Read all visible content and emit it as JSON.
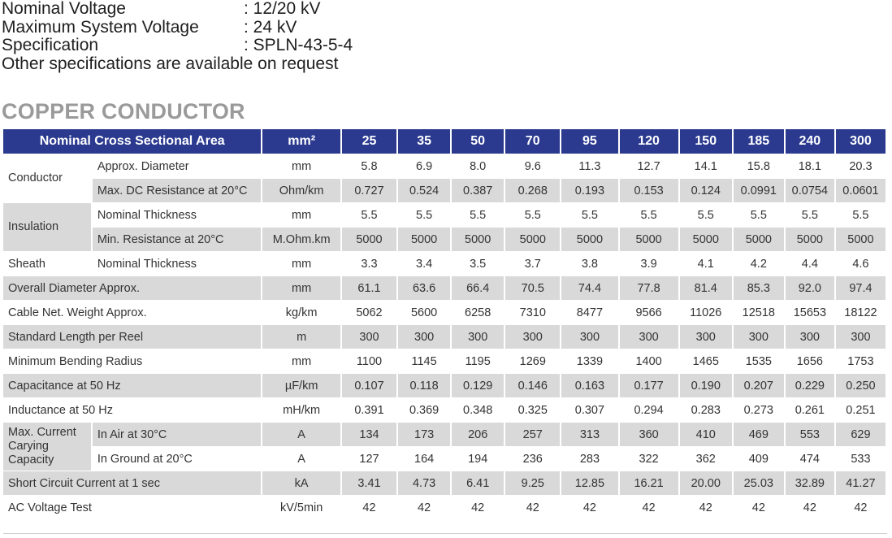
{
  "specs": [
    {
      "key": "Nominal Voltage",
      "value": ": 12/20 kV"
    },
    {
      "key": "Maximum System Voltage",
      "value": ": 24 kV"
    },
    {
      "key": "Specification",
      "value": ": SPLN-43-5-4"
    }
  ],
  "note": "Other specifications are available on request",
  "section_title": "COPPER CONDUCTOR",
  "table": {
    "header": {
      "label": "Nominal Cross Sectional Area",
      "unit": "mm²",
      "sizes": [
        "25",
        "35",
        "50",
        "70",
        "95",
        "120",
        "150",
        "185",
        "240",
        "300"
      ]
    },
    "groups": {
      "conductor": "Conductor",
      "insulation": "Insulation",
      "sheath": "Sheath",
      "max_current": "Max. Current Carying Capacity"
    },
    "rows": [
      {
        "label": "Approx. Diameter",
        "unit": "mm",
        "values": [
          "5.8",
          "6.9",
          "8.0",
          "9.6",
          "11.3",
          "12.7",
          "14.1",
          "15.8",
          "18.1",
          "20.3"
        ]
      },
      {
        "label": "Max. DC Resistance at 20°C",
        "unit": "Ohm/km",
        "values": [
          "0.727",
          "0.524",
          "0.387",
          "0.268",
          "0.193",
          "0.153",
          "0.124",
          "0.0991",
          "0.0754",
          "0.0601"
        ]
      },
      {
        "label": "Nominal Thickness",
        "unit": "mm",
        "values": [
          "5.5",
          "5.5",
          "5.5",
          "5.5",
          "5.5",
          "5.5",
          "5.5",
          "5.5",
          "5.5",
          "5.5"
        ]
      },
      {
        "label": "Min. Resistance at 20°C",
        "unit": "M.Ohm.km",
        "values": [
          "5000",
          "5000",
          "5000",
          "5000",
          "5000",
          "5000",
          "5000",
          "5000",
          "5000",
          "5000"
        ]
      },
      {
        "label": "Nominal Thickness",
        "unit": "mm",
        "values": [
          "3.3",
          "3.4",
          "3.5",
          "3.7",
          "3.8",
          "3.9",
          "4.1",
          "4.2",
          "4.4",
          "4.6"
        ]
      },
      {
        "label": "Overall Diameter Approx.",
        "unit": "mm",
        "values": [
          "61.1",
          "63.6",
          "66.4",
          "70.5",
          "74.4",
          "77.8",
          "81.4",
          "85.3",
          "92.0",
          "97.4"
        ]
      },
      {
        "label": "Cable Net. Weight Approx.",
        "unit": "kg/km",
        "values": [
          "5062",
          "5600",
          "6258",
          "7310",
          "8477",
          "9566",
          "11026",
          "12518",
          "15653",
          "18122"
        ]
      },
      {
        "label": "Standard Length per Reel",
        "unit": "m",
        "values": [
          "300",
          "300",
          "300",
          "300",
          "300",
          "300",
          "300",
          "300",
          "300",
          "300"
        ]
      },
      {
        "label": "Minimum Bending Radius",
        "unit": "mm",
        "values": [
          "1100",
          "1145",
          "1195",
          "1269",
          "1339",
          "1400",
          "1465",
          "1535",
          "1656",
          "1753"
        ]
      },
      {
        "label": "Capacitance at 50 Hz",
        "unit": "µF/km",
        "values": [
          "0.107",
          "0.118",
          "0.129",
          "0.146",
          "0.163",
          "0.177",
          "0.190",
          "0.207",
          "0.229",
          "0.250"
        ]
      },
      {
        "label": "Inductance at 50 Hz",
        "unit": "mH/km",
        "values": [
          "0.391",
          "0.369",
          "0.348",
          "0.325",
          "0.307",
          "0.294",
          "0.283",
          "0.273",
          "0.261",
          "0.251"
        ]
      },
      {
        "label": "In Air at 30°C",
        "unit": "A",
        "values": [
          "134",
          "173",
          "206",
          "257",
          "313",
          "360",
          "410",
          "469",
          "553",
          "629"
        ]
      },
      {
        "label": "In Ground at 20°C",
        "unit": "A",
        "values": [
          "127",
          "164",
          "194",
          "236",
          "283",
          "322",
          "362",
          "409",
          "474",
          "533"
        ]
      },
      {
        "label": "Short Circuit Current at 1 sec",
        "unit": "kA",
        "values": [
          "3.41",
          "4.73",
          "6.41",
          "9.25",
          "12.85",
          "16.21",
          "20.00",
          "25.03",
          "32.89",
          "41.27"
        ]
      },
      {
        "label": "AC Voltage Test",
        "unit": "kV/5min",
        "values": [
          "42",
          "42",
          "42",
          "42",
          "42",
          "42",
          "42",
          "42",
          "42",
          "42"
        ]
      }
    ]
  }
}
